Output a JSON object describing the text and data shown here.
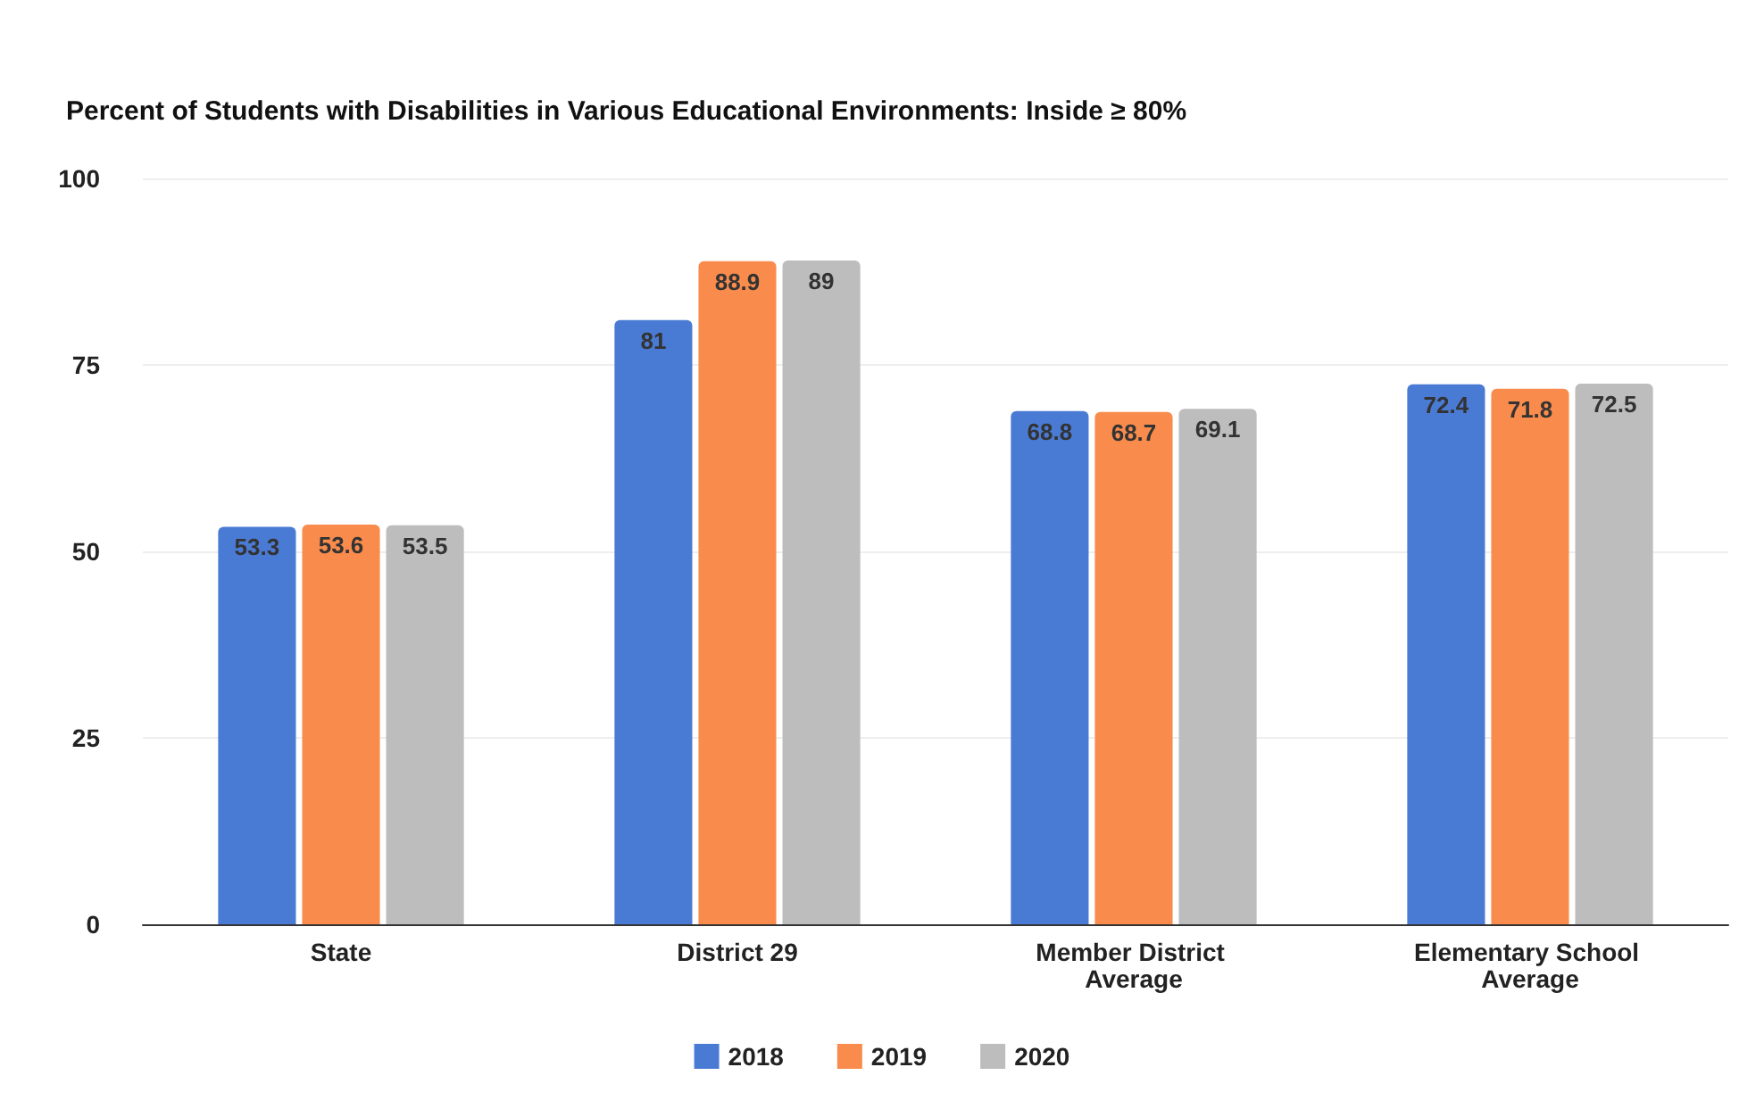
{
  "chart_data": {
    "type": "bar",
    "title": "Percent of Students with Disabilities in Various Educational Environments: Inside ≥ 80%",
    "categories": [
      "State",
      "District 29",
      "Member District Average",
      "Elementary School Average"
    ],
    "series": [
      {
        "name": "2018",
        "color": "#4a7bd4",
        "values": [
          53.3,
          81,
          68.8,
          72.4
        ]
      },
      {
        "name": "2019",
        "color": "#f98c4d",
        "values": [
          53.6,
          88.9,
          68.7,
          71.8
        ]
      },
      {
        "name": "2020",
        "color": "#bdbdbd",
        "values": [
          53.5,
          89,
          69.1,
          72.5
        ]
      }
    ],
    "ylim": [
      0,
      100
    ],
    "yticks": [
      0,
      25,
      50,
      75,
      100
    ],
    "grid": "y",
    "legend": "bottom",
    "data_labels": true
  }
}
